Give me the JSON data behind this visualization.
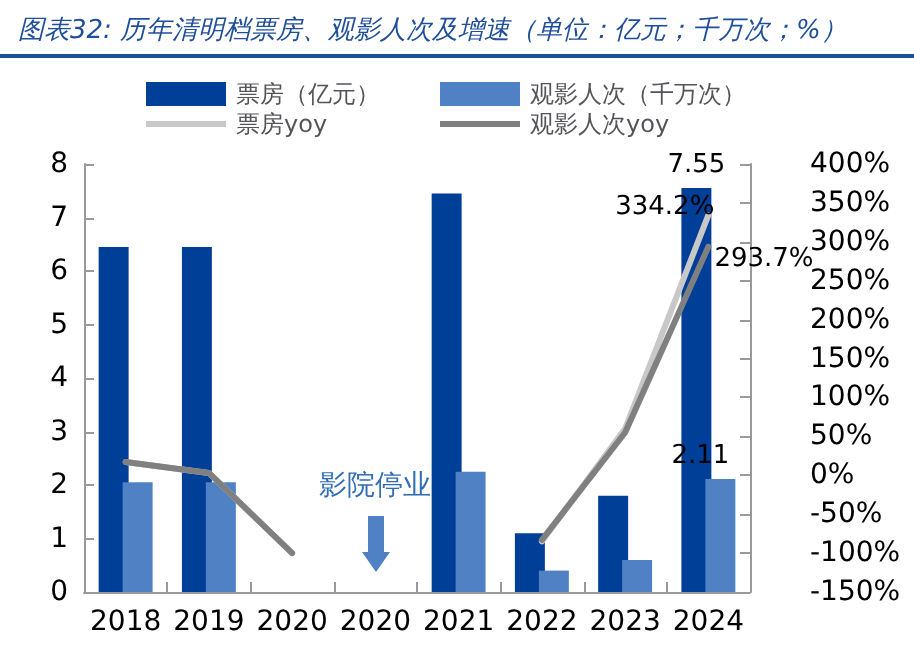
{
  "chart_data": {
    "type": "bar",
    "title": "图表32: 历年清明档票房、观影人次及增速（单位：亿元；千万次；%）",
    "categories": [
      "2018",
      "2019",
      "2020",
      "2020",
      "2021",
      "2022",
      "2023",
      "2024"
    ],
    "series": [
      {
        "name": "票房（亿元）",
        "color": "#003f98",
        "values": [
          6.45,
          6.45,
          null,
          null,
          7.45,
          1.1,
          1.8,
          7.55
        ],
        "value_labels": [
          null,
          null,
          null,
          null,
          null,
          null,
          null,
          "7.55"
        ]
      },
      {
        "name": "观影人次（千万次）",
        "color": "#4f81c4",
        "values": [
          2.05,
          2.05,
          null,
          null,
          2.25,
          0.4,
          0.6,
          2.11
        ],
        "value_labels": [
          null,
          null,
          null,
          null,
          null,
          null,
          null,
          "2.11"
        ]
      },
      {
        "name": "票房yoy",
        "type": "line",
        "axis": "y2",
        "color": "#c8c8c8",
        "values": [
          17,
          3,
          -100,
          null,
          null,
          -85,
          60,
          334.2
        ],
        "value_labels": [
          null,
          null,
          null,
          null,
          null,
          null,
          null,
          "334.2%"
        ]
      },
      {
        "name": "观影人次yoy",
        "type": "line",
        "axis": "y2",
        "color": "#808080",
        "values": [
          17,
          3,
          -100,
          null,
          null,
          -83,
          55,
          293.7
        ],
        "value_labels": [
          null,
          null,
          null,
          null,
          null,
          null,
          null,
          "293.7%"
        ]
      }
    ],
    "ylim": [
      0,
      8
    ],
    "yticks": [
      0,
      1,
      2,
      3,
      4,
      5,
      6,
      7,
      8
    ],
    "y2lim": [
      -150,
      400
    ],
    "y2ticks": [
      {
        "value": -150,
        "label": "-150%"
      },
      {
        "value": -100,
        "label": "-100%"
      },
      {
        "value": -50,
        "label": "-50%"
      },
      {
        "value": 0,
        "label": "0%"
      },
      {
        "value": 50,
        "label": "50%"
      },
      {
        "value": 100,
        "label": "100%"
      },
      {
        "value": 150,
        "label": "150%"
      },
      {
        "value": 200,
        "label": "200%"
      },
      {
        "value": 250,
        "label": "250%"
      },
      {
        "value": 300,
        "label": "300%"
      },
      {
        "value": 350,
        "label": "350%"
      },
      {
        "value": 400,
        "label": "400%"
      }
    ],
    "legend": "top",
    "annotations": [
      "影院停业"
    ]
  }
}
